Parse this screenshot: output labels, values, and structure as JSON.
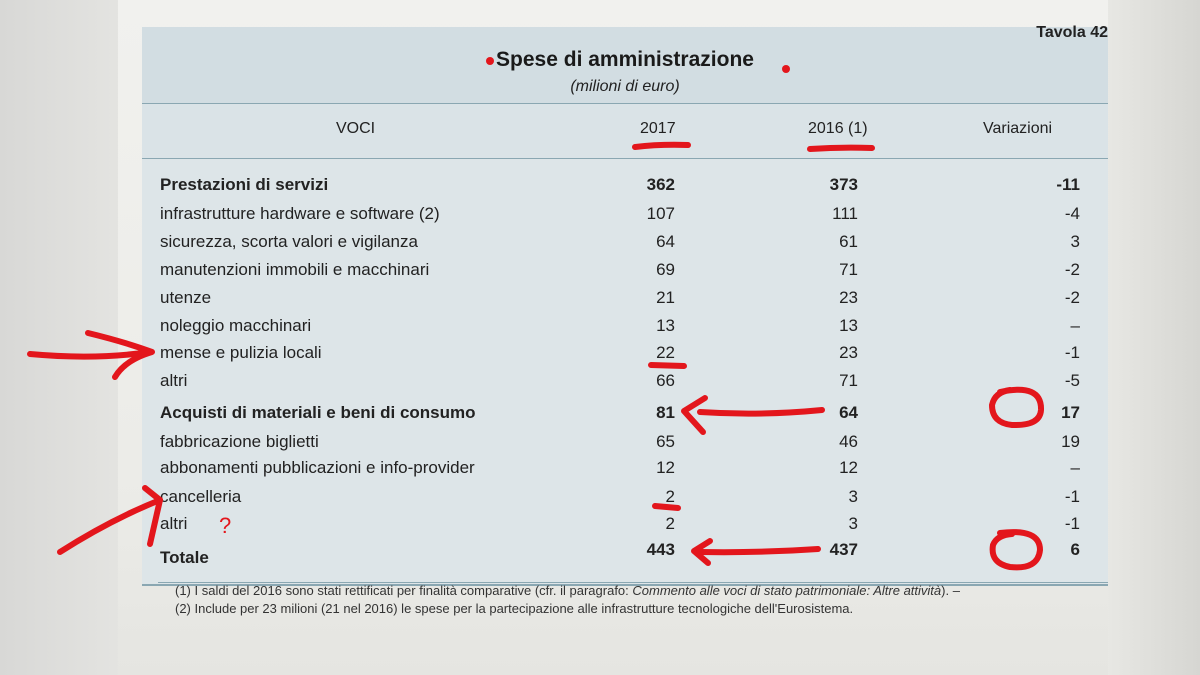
{
  "table": {
    "tavola": "Tavola 42",
    "title": "Spese di amministrazione",
    "units": "(milioni di euro)",
    "headers": {
      "voci": "VOCI",
      "y2017": "2017",
      "y2016": "2016 (1)",
      "variazioni": "Variazioni"
    },
    "rows": [
      {
        "label": "Prestazioni di servizi",
        "v2017": "362",
        "v2016": "373",
        "var": "-11",
        "bold": true
      },
      {
        "label": "infrastrutture hardware e software (2)",
        "v2017": "107",
        "v2016": "111",
        "var": "-4"
      },
      {
        "label": "sicurezza, scorta valori e vigilanza",
        "v2017": "64",
        "v2016": "61",
        "var": "3"
      },
      {
        "label": "manutenzioni immobili e macchinari",
        "v2017": "69",
        "v2016": "71",
        "var": "-2"
      },
      {
        "label": "utenze",
        "v2017": "21",
        "v2016": "23",
        "var": "-2"
      },
      {
        "label": "noleggio macchinari",
        "v2017": "13",
        "v2016": "13",
        "var": "–"
      },
      {
        "label": "mense e pulizia locali",
        "v2017": "22",
        "v2016": "23",
        "var": "-1"
      },
      {
        "label": "altri",
        "v2017": "66",
        "v2016": "71",
        "var": "-5"
      },
      {
        "label": "Acquisti di materiali e beni di consumo",
        "v2017": "81",
        "v2016": "64",
        "var": "17",
        "bold": true
      },
      {
        "label": "fabbricazione biglietti",
        "v2017": "65",
        "v2016": "46",
        "var": "19"
      },
      {
        "label": "abbonamenti pubblicazioni e info-provider",
        "v2017": "12",
        "v2016": "12",
        "var": "–"
      },
      {
        "label": "cancelleria",
        "v2017": "2",
        "v2016": "3",
        "var": "-1"
      },
      {
        "label": "altri",
        "v2017": "2",
        "v2016": "3",
        "var": "-1"
      },
      {
        "label": "Totale",
        "v2017": "443",
        "v2016": "437",
        "var": "6",
        "bold": true
      }
    ],
    "footnote1_a": "(1) I saldi del 2016 sono stati rettificati per finalità comparative (cfr. il paragrafo: ",
    "footnote1_b": "Commento alle voci di stato patrimoniale: Altre attività",
    "footnote1_c": "). –",
    "footnote2": "(2) Include per 23 milioni (21 nel 2016) le spese per la partecipazione alle infrastrutture tecnologiche dell'Eurosistema."
  },
  "annotations": {
    "question_mark": "?",
    "ink_color": "#e3161c"
  }
}
